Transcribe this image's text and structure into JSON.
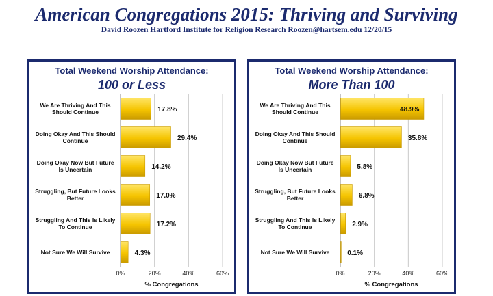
{
  "title": "American Congregations 2015: Thriving and Surviving",
  "subtitle": "David Roozen  Hartford Institute for Religion Research  Roozen@hartsem.edu  12/20/15",
  "colors": {
    "bar": "#f5c400",
    "bar_dark": "#c99a00",
    "title": "#1b2a6e",
    "grid": "#c8c8c8"
  },
  "chart_data": [
    {
      "type": "bar",
      "orientation": "horizontal",
      "title": "Total Weekend Worship Attendance:",
      "subtitle": "100 or Less",
      "categories": [
        "We Are Thriving And This Should Continue",
        "Doing Okay And This Should Continue",
        "Doing Okay Now But Future Is Uncertain",
        "Struggling, But Future Looks Better",
        "Struggling And This Is Likely To Continue",
        "Not Sure We Will Survive"
      ],
      "values": [
        17.8,
        29.4,
        14.2,
        17.0,
        17.2,
        4.3
      ],
      "value_labels": [
        "17.8%",
        "29.4%",
        "14.2%",
        "17.0%",
        "17.2%",
        "4.3%"
      ],
      "xlabel": "% Congregations",
      "xlim": [
        0,
        60
      ],
      "xticks": [
        "0%",
        "20%",
        "40%",
        "60%"
      ],
      "grid": true
    },
    {
      "type": "bar",
      "orientation": "horizontal",
      "title": "Total Weekend Worship Attendance:",
      "subtitle": "More Than 100",
      "categories": [
        "We Are Thriving And This Should Continue",
        "Doing Okay And This Should Continue",
        "Doing Okay Now But Future Is Uncertain",
        "Struggling, But Future Looks Better",
        "Struggling And This Is Likely To Continue",
        "Not Sure We Will Survive"
      ],
      "values": [
        48.9,
        35.8,
        5.8,
        6.8,
        2.9,
        0.1
      ],
      "value_labels": [
        "48.9%",
        "35.8%",
        "5.8%",
        "6.8%",
        "2.9%",
        "0.1%"
      ],
      "xlabel": "% Congregations",
      "xlim": [
        0,
        60
      ],
      "xticks": [
        "0%",
        "20%",
        "40%",
        "60%"
      ],
      "grid": true
    }
  ]
}
